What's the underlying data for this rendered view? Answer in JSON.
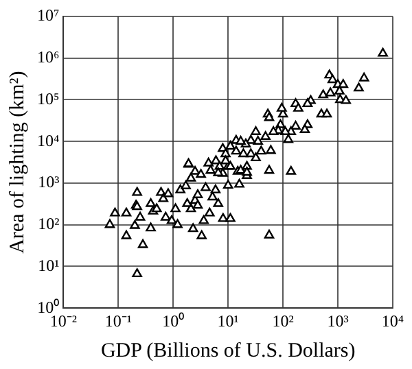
{
  "chart_data": {
    "type": "scatter",
    "xlabel": "GDP (Billions of U.S. Dollars)",
    "ylabel": "Area of lighting (km²)",
    "log": "xy",
    "grid": true,
    "marker": "triangle",
    "legend": false,
    "xlim": [
      0.01,
      10000
    ],
    "ylim": [
      1,
      10000000
    ],
    "xticks": [
      {
        "value": 0.01,
        "label": "10⁻²"
      },
      {
        "value": 0.1,
        "label": "10⁻¹"
      },
      {
        "value": 1,
        "label": "10⁰"
      },
      {
        "value": 10,
        "label": "10¹"
      },
      {
        "value": 100,
        "label": "10²"
      },
      {
        "value": 1000,
        "label": "10³"
      },
      {
        "value": 10000,
        "label": "10⁴"
      }
    ],
    "yticks": [
      {
        "value": 1,
        "label": "10⁰"
      },
      {
        "value": 10,
        "label": "10¹"
      },
      {
        "value": 100,
        "label": "10²"
      },
      {
        "value": 1000,
        "label": "10³"
      },
      {
        "value": 10000,
        "label": "10⁴"
      },
      {
        "value": 100000,
        "label": "10⁵"
      },
      {
        "value": 1000000,
        "label": "10⁶"
      },
      {
        "value": 10000000,
        "label": "10⁷"
      }
    ],
    "series": [
      {
        "color": "#000000",
        "x": [
          0.07,
          0.087,
          0.14,
          0.14,
          0.22,
          0.21,
          0.22,
          0.2,
          0.25,
          0.28,
          0.22,
          0.39,
          0.43,
          0.5,
          0.39,
          0.6,
          0.66,
          0.81,
          0.73,
          0.94,
          1.1,
          1.2,
          1.35,
          1.7,
          2.3,
          2.1,
          1.8,
          2.5,
          3.3,
          3.6,
          2.8,
          4.6,
          8.1,
          11,
          2.8,
          3.9,
          5.2,
          5.9,
          6.6,
          10,
          16,
          56,
          140,
          56,
          22,
          15,
          8,
          10,
          2.1,
          2.5,
          1.9,
          6600,
          700,
          800,
          1000,
          1250,
          3000,
          2400,
          540,
          730,
          1070,
          1100,
          1400,
          320,
          280,
          170,
          190,
          500,
          630,
          100,
          53,
          56,
          95,
          280,
          250,
          170,
          140,
          90,
          110,
          82,
          125,
          67,
          48,
          32,
          35,
          26,
          21,
          14,
          17,
          11,
          8,
          9,
          14,
          19,
          26,
          40,
          60,
          32,
          6,
          9,
          4.4,
          7,
          11,
          17,
          22,
          1.9,
          4.8,
          6.6,
          22,
          3.2
        ],
        "values": [
          100,
          190,
          190,
          54,
          590,
          290,
          270,
          95,
          150,
          33,
          6.6,
          83,
          210,
          240,
          320,
          590,
          420,
          550,
          150,
          125,
          240,
          100,
          680,
          850,
          80,
          240,
          320,
          380,
          54,
          125,
          290,
          190,
          140,
          140,
          520,
          770,
          460,
          680,
          320,
          880,
          930,
          2000,
          1900,
          56,
          1500,
          1900,
          1700,
          2500,
          1300,
          1900,
          2800,
          1300000,
          390000,
          300000,
          230000,
          230000,
          330000,
          190000,
          130000,
          145000,
          160000,
          100000,
          95000,
          95000,
          80000,
          80000,
          62000,
          45000,
          45000,
          45000,
          45000,
          37000,
          62000,
          25000,
          19000,
          23000,
          17000,
          25000,
          17000,
          18000,
          11000,
          17000,
          13000,
          17000,
          10000,
          10500,
          8600,
          10500,
          10000,
          7600,
          6700,
          5000,
          5800,
          5000,
          5000,
          5800,
          6000,
          4000,
          3400,
          3400,
          3000,
          2500,
          2500,
          2000,
          2500,
          2900,
          2000,
          1750,
          1800,
          1600
        ]
      }
    ]
  }
}
